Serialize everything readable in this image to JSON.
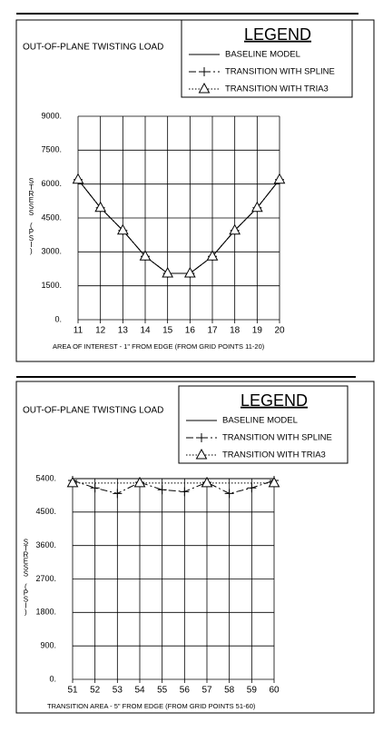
{
  "chart_data": [
    {
      "type": "line",
      "title": "OUT-OF-PLANE TWISTING LOAD",
      "legend_title": "LEGEND",
      "y_label": "STRESS (PSI)",
      "x_label": "AREA OF INTEREST - 1\" FROM EDGE  (FROM GRID POINTS 11-20)",
      "x": [
        11,
        12,
        13,
        14,
        15,
        16,
        17,
        18,
        19,
        20
      ],
      "xlim": [
        11,
        20
      ],
      "xticks": [
        11,
        12,
        13,
        14,
        15,
        16,
        17,
        18,
        19,
        20
      ],
      "ylim": [
        0,
        9000
      ],
      "yticks": [
        {
          "value": 0,
          "label": "0."
        },
        {
          "value": 1500,
          "label": "1500."
        },
        {
          "value": 3000,
          "label": "3000."
        },
        {
          "value": 4500,
          "label": "4500."
        },
        {
          "value": 6000,
          "label": "6000."
        },
        {
          "value": 7500,
          "label": "7500."
        },
        {
          "value": 9000,
          "label": "9000."
        }
      ],
      "grid": true,
      "series": [
        {
          "name": "BASELINE MODEL",
          "color": "#000000",
          "style": "solid",
          "marker": "none",
          "values": [
            6200,
            4950,
            3950,
            2800,
            2050,
            2050,
            2800,
            3950,
            4950,
            6200
          ]
        },
        {
          "name": "TRANSITION WITH SPLINE",
          "color": "#000000",
          "style": "dashdot",
          "marker": "plus",
          "values": [
            6200,
            4950,
            3950,
            2800,
            2050,
            2050,
            2800,
            3950,
            4950,
            6200
          ]
        },
        {
          "name": "TRANSITION WITH TRIA3",
          "color": "#000000",
          "style": "dotted",
          "marker": "triangle",
          "values": [
            6200,
            4950,
            3950,
            2800,
            2050,
            2050,
            2800,
            3950,
            4950,
            6200
          ]
        }
      ]
    },
    {
      "type": "line",
      "title": "OUT-OF-PLANE TWISTING LOAD",
      "legend_title": "LEGEND",
      "y_label": "STRESS (PSI)",
      "x_label": "TRANSITION AREA - 5\" FROM EDGE  (FROM GRID POINTS 51-60)",
      "x": [
        51,
        52,
        53,
        54,
        55,
        56,
        57,
        58,
        59,
        60
      ],
      "xlim": [
        51,
        60
      ],
      "xticks": [
        51,
        52,
        53,
        54,
        55,
        56,
        57,
        58,
        59,
        60
      ],
      "ylim": [
        0,
        5400
      ],
      "yticks": [
        {
          "value": 0,
          "label": "0."
        },
        {
          "value": 900,
          "label": "900."
        },
        {
          "value": 1800,
          "label": "1800."
        },
        {
          "value": 2700,
          "label": "2700."
        },
        {
          "value": 3600,
          "label": "3600."
        },
        {
          "value": 4500,
          "label": "4500."
        },
        {
          "value": 5400,
          "label": "5400."
        }
      ],
      "grid": true,
      "series": [
        {
          "name": "BASELINE MODEL",
          "color": "#000000",
          "style": "solid",
          "marker": "none",
          "values": [
            5400,
            5400,
            5400,
            5400,
            5400,
            5400,
            5400,
            5400,
            5400,
            5400
          ]
        },
        {
          "name": "TRANSITION WITH SPLINE",
          "color": "#000000",
          "style": "dashdot",
          "marker": "plus",
          "values": [
            5350,
            5150,
            5000,
            5300,
            5100,
            5050,
            5300,
            5000,
            5150,
            5350
          ]
        },
        {
          "name": "TRANSITION WITH TRIA3",
          "color": "#000000",
          "style": "dotted",
          "marker": "triangle",
          "x": [
            51,
            54,
            57,
            60
          ],
          "values": [
            5280,
            5280,
            5280,
            5280
          ]
        }
      ]
    }
  ]
}
